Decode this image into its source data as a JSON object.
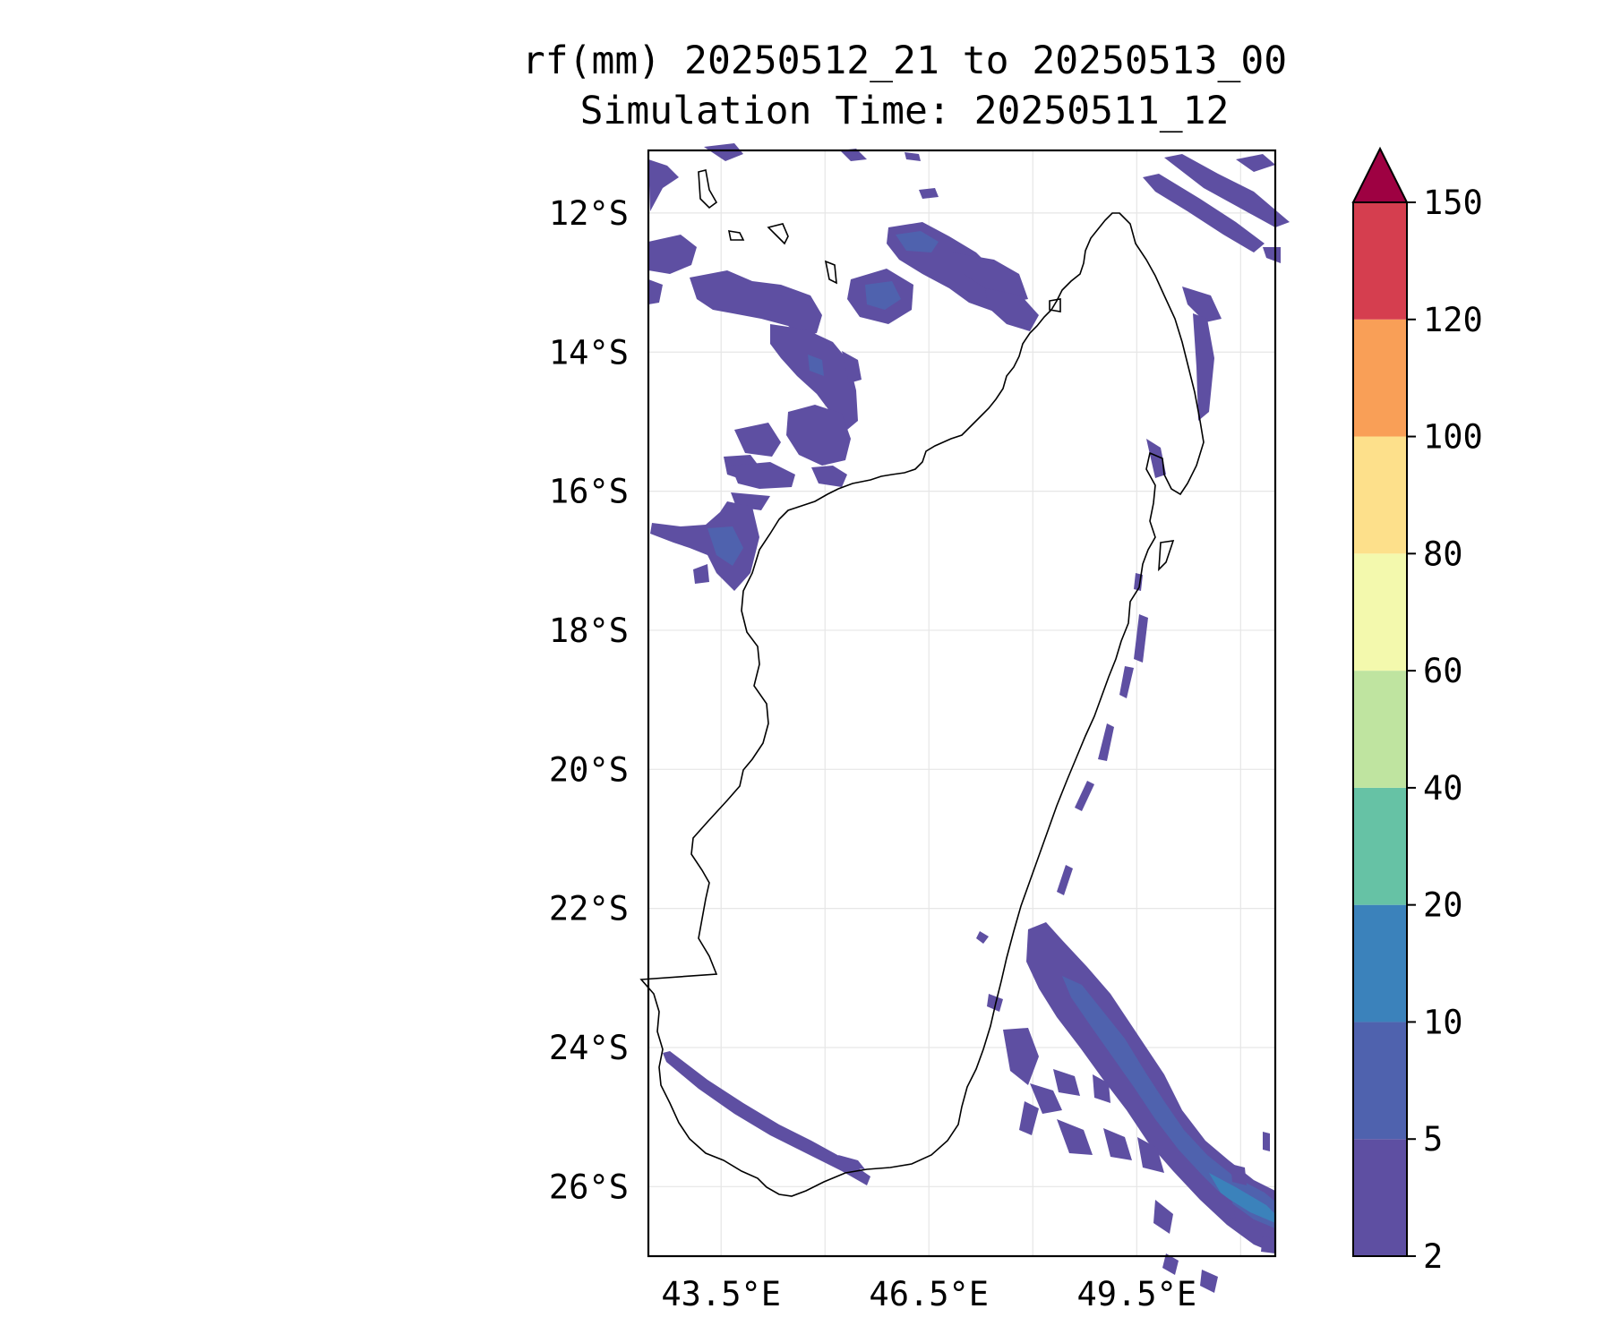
{
  "title": "rf(mm) 20250512_21 to 20250513_00",
  "subtitle": "Simulation Time: 20250511_12",
  "map": {
    "lat_labels": [
      "12°S",
      "14°S",
      "16°S",
      "18°S",
      "20°S",
      "22°S",
      "24°S",
      "26°S"
    ],
    "lon_labels": [
      "43.5°E",
      "46.5°E",
      "49.5°E"
    ],
    "lat_range": [
      -27.0,
      -11.1
    ],
    "lon_range": [
      42.45,
      51.5
    ],
    "gridlines": true,
    "coastline_color": "#000000",
    "region": "Madagascar"
  },
  "colorbar": {
    "levels": [
      "2",
      "5",
      "10",
      "20",
      "40",
      "60",
      "80",
      "100",
      "120",
      "150"
    ],
    "colors": [
      "#5e4fa2",
      "#4f62ae",
      "#3b82bb",
      "#66c2a5",
      "#bfe4a0",
      "#f3f9ad",
      "#fde08b",
      "#f99f57",
      "#d53e4f"
    ],
    "extend_color": "#9e0142",
    "extend": "max"
  },
  "rain_colors": {
    "light": "#5e4fa2",
    "medium": "#4f62ae",
    "heavy": "#3b82bb"
  }
}
